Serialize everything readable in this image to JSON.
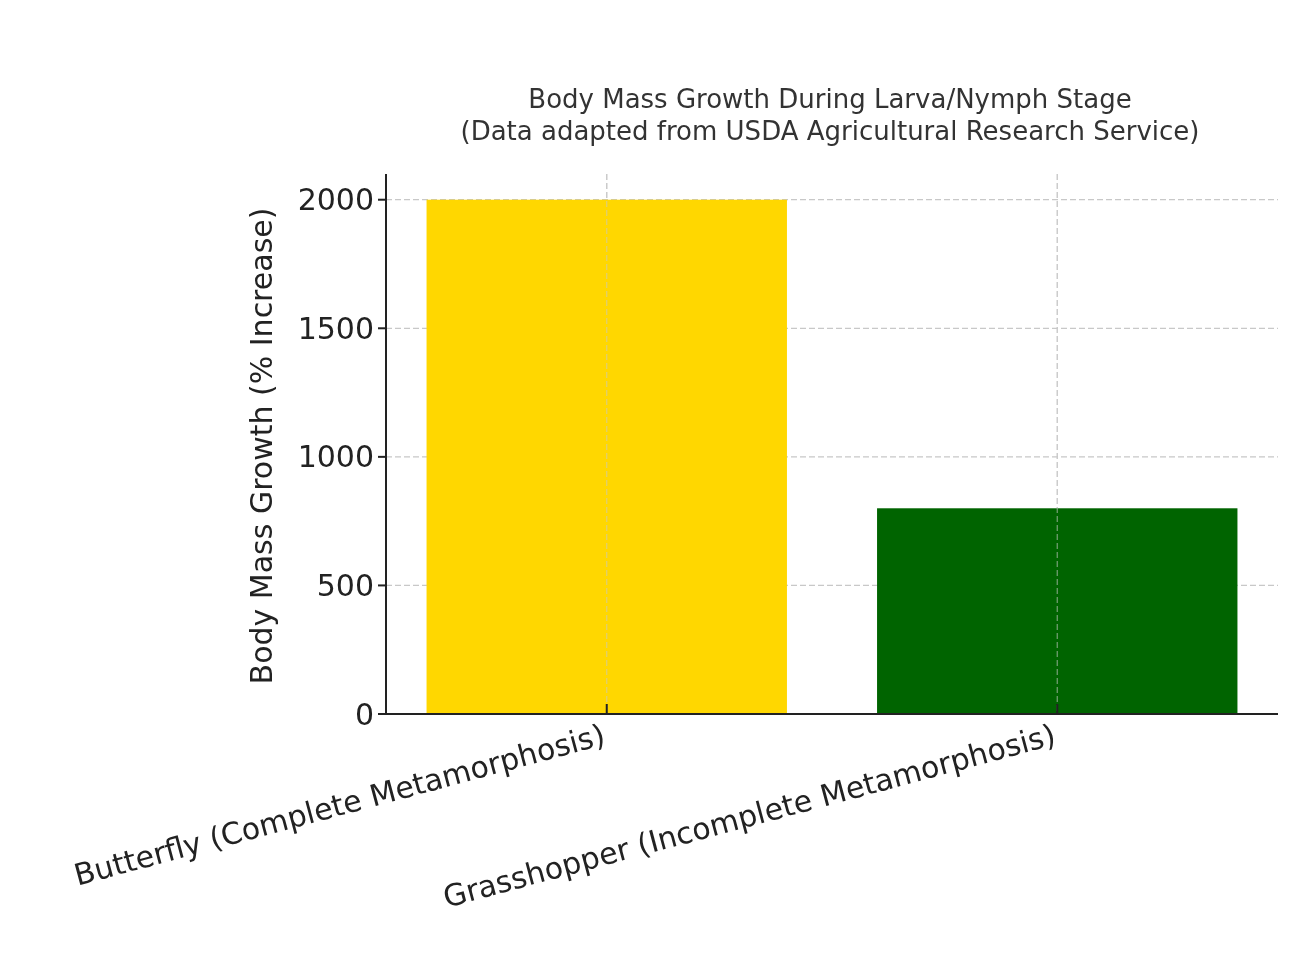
{
  "chart_data": {
    "type": "bar",
    "title": "Body Mass Growth During Larva/Nymph Stage\n(Data adapted from USDA Agricultural Research Service)",
    "ylabel": "Body Mass Growth (% Increase)",
    "categories": [
      "Butterfly (Complete Metamorphosis)",
      "Grasshopper (Incomplete Metamorphosis)"
    ],
    "values": [
      2000,
      800
    ],
    "colors": [
      "#ffd700",
      "#006400"
    ],
    "ylim": [
      0,
      2100
    ],
    "yticks": [
      0,
      500,
      1000,
      1500,
      2000
    ],
    "grid": true
  }
}
